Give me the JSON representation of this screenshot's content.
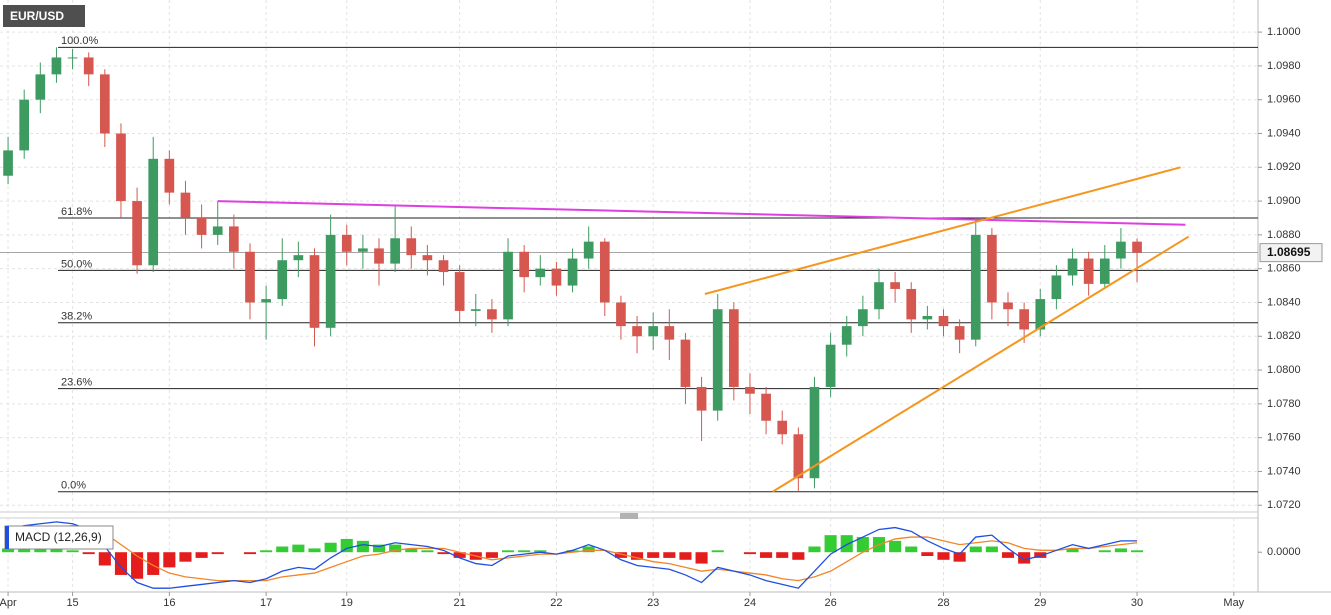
{
  "chart_data": [
    {
      "type": "candlestick",
      "title": "EUR/USD",
      "categories": [
        "Apr",
        null,
        null,
        null,
        "15",
        null,
        null,
        null,
        null,
        null,
        "16",
        null,
        null,
        null,
        null,
        null,
        "17",
        null,
        null,
        null,
        null,
        "19",
        null,
        null,
        null,
        null,
        null,
        null,
        "21",
        null,
        null,
        null,
        null,
        null,
        "22",
        null,
        null,
        null,
        null,
        null,
        "23",
        null,
        null,
        null,
        null,
        null,
        "24",
        null,
        null,
        null,
        null,
        "26",
        null,
        null,
        null,
        null,
        null,
        null,
        "28",
        null,
        null,
        null,
        null,
        null,
        "29",
        null,
        null,
        null,
        null,
        null,
        "30",
        null,
        null,
        null,
        null,
        null,
        "May",
        null
      ],
      "open": [
        1.0915,
        1.093,
        1.096,
        1.0975,
        1.0985,
        1.0985,
        1.0975,
        1.094,
        1.09,
        1.0862,
        1.0925,
        1.0905,
        1.089,
        1.088,
        1.0885,
        1.087,
        1.084,
        1.0842,
        1.0865,
        1.0868,
        1.0825,
        1.088,
        1.087,
        1.0872,
        1.0863,
        1.0878,
        1.0868,
        1.0865,
        1.0858,
        1.0835,
        1.0836,
        1.083,
        1.087,
        1.0855,
        1.086,
        1.085,
        1.0866,
        1.0876,
        1.084,
        1.0826,
        1.082,
        1.0826,
        1.0818,
        1.079,
        1.0776,
        1.0836,
        1.079,
        1.0786,
        1.077,
        1.0762,
        1.0736,
        1.079,
        1.0815,
        1.0826,
        1.0836,
        1.0852,
        1.0848,
        1.083,
        1.0832,
        1.0826,
        1.0818,
        1.088,
        1.084,
        1.0836,
        1.0824,
        1.0842,
        1.0856,
        1.0866,
        1.0851,
        1.0866,
        1.0876,
        null,
        null,
        null,
        null,
        null,
        null,
        null
      ],
      "high": [
        1.0938,
        1.0966,
        1.0982,
        1.0991,
        1.099,
        1.0988,
        1.0978,
        1.0946,
        1.0908,
        1.0938,
        1.093,
        1.0912,
        1.0898,
        1.09,
        1.0892,
        1.0875,
        1.085,
        1.0878,
        1.0876,
        1.0872,
        1.0892,
        1.0886,
        1.088,
        1.0878,
        1.0897,
        1.0885,
        1.0874,
        1.0868,
        1.0862,
        1.0845,
        1.0842,
        1.0878,
        1.0874,
        1.0868,
        1.0864,
        1.0872,
        1.0885,
        1.0878,
        1.0844,
        1.0832,
        1.0834,
        1.0836,
        1.0822,
        1.0796,
        1.0845,
        1.084,
        1.0798,
        1.079,
        1.0776,
        1.0766,
        1.0796,
        1.0822,
        1.0832,
        1.0844,
        1.086,
        1.0858,
        1.0852,
        1.0838,
        1.0836,
        1.083,
        1.089,
        1.0884,
        1.0846,
        1.084,
        1.0848,
        1.0862,
        1.0872,
        1.087,
        1.0874,
        1.0884,
        1.0878,
        null,
        null,
        null,
        null,
        null,
        null,
        null
      ],
      "low": [
        1.091,
        1.0925,
        1.0952,
        1.097,
        1.0978,
        1.0968,
        1.0932,
        1.089,
        1.0857,
        1.0858,
        1.0898,
        1.088,
        1.0872,
        1.0874,
        1.086,
        1.083,
        1.0818,
        1.0838,
        1.0855,
        1.0814,
        1.082,
        1.0862,
        1.086,
        1.085,
        1.0858,
        1.086,
        1.0856,
        1.085,
        1.0828,
        1.0826,
        1.0822,
        1.0826,
        1.0846,
        1.085,
        1.0844,
        1.0846,
        1.086,
        1.0832,
        1.0818,
        1.081,
        1.0812,
        1.0806,
        1.078,
        1.0758,
        1.077,
        1.0782,
        1.0774,
        1.0762,
        1.0756,
        1.0728,
        1.073,
        1.0784,
        1.0808,
        1.082,
        1.083,
        1.084,
        1.0822,
        1.0824,
        1.082,
        1.081,
        1.0814,
        1.083,
        1.0826,
        1.0816,
        1.082,
        1.0836,
        1.085,
        1.0844,
        1.0848,
        1.086,
        1.0852,
        null,
        null,
        null,
        null,
        null,
        null,
        null
      ],
      "close": [
        1.093,
        1.096,
        1.0975,
        1.0985,
        1.0985,
        1.0975,
        1.094,
        1.09,
        1.0862,
        1.0925,
        1.0905,
        1.089,
        1.088,
        1.0885,
        1.087,
        1.084,
        1.0842,
        1.0865,
        1.0868,
        1.0825,
        1.088,
        1.087,
        1.0872,
        1.0863,
        1.0878,
        1.0868,
        1.0865,
        1.0858,
        1.0835,
        1.0836,
        1.083,
        1.087,
        1.0855,
        1.086,
        1.085,
        1.0866,
        1.0876,
        1.084,
        1.0826,
        1.082,
        1.0826,
        1.0818,
        1.079,
        1.0776,
        1.0836,
        1.079,
        1.0786,
        1.077,
        1.0762,
        1.0736,
        1.079,
        1.0815,
        1.0826,
        1.0836,
        1.0852,
        1.0848,
        1.083,
        1.0832,
        1.0826,
        1.0818,
        1.088,
        1.084,
        1.0836,
        1.0824,
        1.0842,
        1.0856,
        1.0866,
        1.0851,
        1.0866,
        1.0876,
        1.08695,
        null,
        null,
        null,
        null,
        null,
        null,
        null
      ],
      "up_color": "#3d9b62",
      "down_color": "#d6574f",
      "ylim": [
        1.0716,
        1.1019
      ],
      "yticks": [
        {
          "value": 1.072,
          "label": "1.0720"
        },
        {
          "value": 1.074,
          "label": "1.0740"
        },
        {
          "value": 1.076,
          "label": "1.0760"
        },
        {
          "value": 1.078,
          "label": "1.0780"
        },
        {
          "value": 1.08,
          "label": "1.0800"
        },
        {
          "value": 1.082,
          "label": "1.0820"
        },
        {
          "value": 1.084,
          "label": "1.0840"
        },
        {
          "value": 1.086,
          "label": "1.0860"
        },
        {
          "value": 1.088,
          "label": "1.0880"
        },
        {
          "value": 1.09,
          "label": "1.0900"
        },
        {
          "value": 1.092,
          "label": "1.0920"
        },
        {
          "value": 1.094,
          "label": "1.0940"
        },
        {
          "value": 1.096,
          "label": "1.0960"
        },
        {
          "value": 1.098,
          "label": "1.0980"
        },
        {
          "value": 1.1,
          "label": "1.1000"
        }
      ],
      "grid": true,
      "current_price": 1.08695,
      "fib_levels": [
        {
          "label": "100.0%",
          "value": 1.0991
        },
        {
          "label": "61.8%",
          "value": 1.089
        },
        {
          "label": "50.0%",
          "value": 1.0859
        },
        {
          "label": "38.2%",
          "value": 1.0828
        },
        {
          "label": "23.6%",
          "value": 1.0789
        },
        {
          "label": "0.0%",
          "value": 1.0728
        }
      ],
      "trendlines": [
        {
          "color": "#e03ee0",
          "x": [
            13.0,
            73.0
          ],
          "y": [
            1.09,
            1.0886
          ]
        },
        {
          "color": "#f5961e",
          "x": [
            43.2,
            72.7
          ],
          "y": [
            1.0845,
            1.092
          ]
        },
        {
          "color": "#f5961e",
          "x": [
            47.4,
            73.2
          ],
          "y": [
            1.0728,
            1.0879
          ]
        }
      ]
    },
    {
      "type": "macd",
      "title": "MACD (12,26,9)",
      "macd_line": [
        0.0012,
        0.0014,
        0.0015,
        0.0016,
        0.0015,
        0.0012,
        0.0003,
        -0.0008,
        -0.0016,
        -0.0019,
        -0.0019,
        -0.0018,
        -0.0017,
        -0.0016,
        -0.0015,
        -0.0016,
        -0.0014,
        -0.001,
        -0.0008,
        -0.0009,
        -0.0003,
        0.0002,
        0.0004,
        0.0003,
        0.0005,
        0.0004,
        0.0003,
        0.0001,
        -0.0003,
        -0.0006,
        -0.0007,
        -0.0002,
        -0.0001,
        0,
        -0.0001,
        0.0001,
        0.0004,
        0.0001,
        -0.0004,
        -0.0007,
        -0.0008,
        -0.0009,
        -0.0012,
        -0.0016,
        -0.0008,
        -0.001,
        -0.0012,
        -0.0015,
        -0.0017,
        -0.0019,
        -0.001,
        -0.0001,
        0.0004,
        0.0008,
        0.0012,
        0.0013,
        0.0011,
        0.0006,
        0.0002,
        -0.0001,
        0.0008,
        0.0009,
        0.0002,
        -0.0004,
        -0.0002,
        0.0001,
        0.0004,
        0.0002,
        0.0004,
        0.0006,
        0.0006,
        null,
        null,
        null,
        null,
        null,
        null,
        null
      ],
      "signal_line": [
        0.001,
        0.0011,
        0.0012,
        0.0013,
        0.0014,
        0.0013,
        0.001,
        0.0004,
        -0.0002,
        -0.0007,
        -0.0011,
        -0.0013,
        -0.0014,
        -0.0015,
        -0.0015,
        -0.0015,
        -0.0015,
        -0.0013,
        -0.0012,
        -0.0011,
        -0.0008,
        -0.0005,
        -0.0002,
        -0.0001,
        0.0001,
        0.0002,
        0.0002,
        0.0002,
        0,
        -0.0002,
        -0.0004,
        -0.0003,
        -0.0002,
        -0.0001,
        -0.0001,
        0,
        0.0001,
        0.0001,
        -0.0001,
        -0.0003,
        -0.0005,
        -0.0006,
        -0.0008,
        -0.001,
        -0.0009,
        -0.001,
        -0.0011,
        -0.0012,
        -0.0014,
        -0.0015,
        -0.0013,
        -0.001,
        -0.0005,
        0,
        0.0004,
        0.0007,
        0.0008,
        0.0008,
        0.0006,
        0.0004,
        0.0005,
        0.0006,
        0.0005,
        0.0002,
        0.0001,
        0.0001,
        0.0002,
        0.0002,
        0.0003,
        0.0004,
        0.0005,
        null,
        null,
        null,
        null,
        null,
        null,
        null
      ],
      "histogram": [
        0.0002,
        0.0003,
        0.0003,
        0.0003,
        0.0001,
        -0.0001,
        -0.0007,
        -0.0012,
        -0.0014,
        -0.0012,
        -0.0008,
        -0.0005,
        -0.0003,
        -0.0001,
        0,
        -0.0001,
        0.0001,
        0.0003,
        0.0004,
        0.0002,
        0.0005,
        0.0007,
        0.0006,
        0.0004,
        0.0004,
        0.0002,
        0.0001,
        -0.0001,
        -0.0003,
        -0.0004,
        -0.0003,
        0.0001,
        0.0001,
        0.0001,
        0,
        0.0001,
        0.0003,
        0,
        -0.0003,
        -0.0004,
        -0.0003,
        -0.0003,
        -0.0004,
        -0.0006,
        0.0001,
        0,
        -0.0001,
        -0.0003,
        -0.0003,
        -0.0004,
        0.0003,
        0.0009,
        0.0009,
        0.0008,
        0.0008,
        0.0006,
        0.0003,
        -0.0002,
        -0.0004,
        -0.0005,
        0.0003,
        0.0003,
        -0.0003,
        -0.0006,
        -0.0003,
        0,
        0.0002,
        0,
        0.0001,
        0.0002,
        0.0001,
        null,
        null,
        null,
        null,
        null,
        null,
        null
      ],
      "macd_color": "#1f4fe0",
      "signal_color": "#f0862a",
      "hist_up_color": "#33cc33",
      "hist_down_color": "#e51c1c",
      "ylim": [
        -0.0021,
        0.0017
      ],
      "yticks": [
        {
          "value": 0,
          "label": "0.0000"
        }
      ]
    }
  ]
}
